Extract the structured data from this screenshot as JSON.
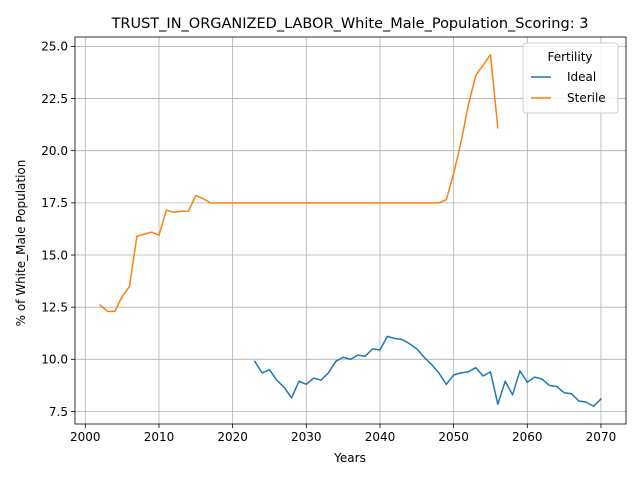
{
  "chart_data": {
    "type": "line",
    "title": "TRUST_IN_ORGANIZED_LABOR_White_Male_Population_Scoring: 3",
    "xlabel": "Years",
    "ylabel": "% of White_Male Population",
    "xlim": [
      1998.6,
      2073.4
    ],
    "ylim": [
      6.9,
      25.45
    ],
    "xticks": [
      2000,
      2010,
      2020,
      2030,
      2040,
      2050,
      2060,
      2070
    ],
    "yticks": [
      7.5,
      10.0,
      12.5,
      15.0,
      17.5,
      20.0,
      22.5,
      25.0
    ],
    "xtick_labels": [
      "2000",
      "2010",
      "2020",
      "2030",
      "2040",
      "2050",
      "2060",
      "2070"
    ],
    "ytick_labels": [
      "7.5",
      "10.0",
      "12.5",
      "15.0",
      "17.5",
      "20.0",
      "22.5",
      "25.0"
    ],
    "grid": true,
    "legend": {
      "title": "Fertility",
      "placement": "top-right"
    },
    "series": [
      {
        "name": "Ideal",
        "color": "#1f77b4",
        "x": [
          2023,
          2024,
          2025,
          2026,
          2027,
          2028,
          2029,
          2030,
          2031,
          2032,
          2033,
          2034,
          2035,
          2036,
          2037,
          2038,
          2039,
          2040,
          2041,
          2042,
          2043,
          2044,
          2045,
          2046,
          2047,
          2048,
          2049,
          2050,
          2051,
          2052,
          2053,
          2054,
          2055,
          2056,
          2057,
          2058,
          2059,
          2060,
          2061,
          2062,
          2063,
          2064,
          2065,
          2066,
          2067,
          2068,
          2069,
          2070
        ],
        "y": [
          9.9,
          9.35,
          9.5,
          9.0,
          8.65,
          8.15,
          8.95,
          8.8,
          9.1,
          9.0,
          9.35,
          9.9,
          10.1,
          10.0,
          10.2,
          10.15,
          10.5,
          10.45,
          11.1,
          11.0,
          10.95,
          10.75,
          10.5,
          10.1,
          9.75,
          9.35,
          8.8,
          9.25,
          9.35,
          9.4,
          9.6,
          9.2,
          9.4,
          7.85,
          8.95,
          8.3,
          9.45,
          8.9,
          9.15,
          9.05,
          8.75,
          8.7,
          8.4,
          8.35,
          8.0,
          7.95,
          7.75,
          8.1
        ]
      },
      {
        "name": "Sterile",
        "color": "#ff7f0e",
        "x": [
          2002,
          2003,
          2004,
          2005,
          2006,
          2007,
          2008,
          2009,
          2010,
          2011,
          2012,
          2013,
          2014,
          2015,
          2016,
          2017,
          2018,
          2019,
          2020,
          2021,
          2022,
          2023,
          2024,
          2025,
          2026,
          2027,
          2028,
          2029,
          2030,
          2031,
          2032,
          2033,
          2034,
          2035,
          2036,
          2037,
          2038,
          2039,
          2040,
          2041,
          2042,
          2043,
          2044,
          2045,
          2046,
          2047,
          2048,
          2049,
          2050,
          2051,
          2052,
          2053,
          2054,
          2055,
          2056
        ],
        "y": [
          12.6,
          12.3,
          12.3,
          13.0,
          13.5,
          15.9,
          16.0,
          16.1,
          15.95,
          17.15,
          17.05,
          17.1,
          17.1,
          17.85,
          17.7,
          17.5,
          17.5,
          17.5,
          17.5,
          17.5,
          17.5,
          17.5,
          17.5,
          17.5,
          17.5,
          17.5,
          17.5,
          17.5,
          17.5,
          17.5,
          17.5,
          17.5,
          17.5,
          17.5,
          17.5,
          17.5,
          17.5,
          17.5,
          17.5,
          17.5,
          17.5,
          17.5,
          17.5,
          17.5,
          17.5,
          17.5,
          17.5,
          17.65,
          18.9,
          20.4,
          22.2,
          23.6,
          24.1,
          24.6,
          21.1
        ]
      }
    ]
  }
}
